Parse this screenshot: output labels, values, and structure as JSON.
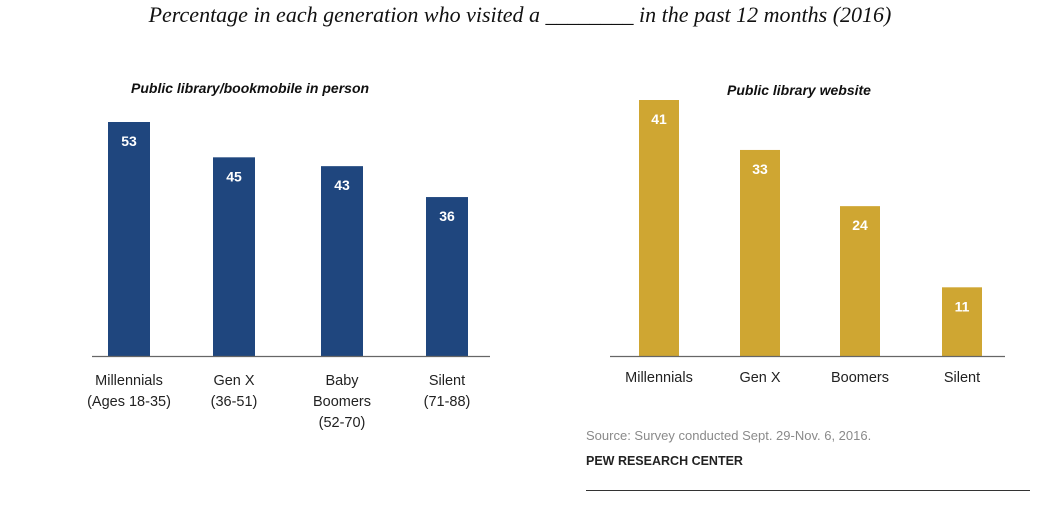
{
  "title": "Percentage in each generation who visited a ________ in the past 12 months (2016)",
  "chart_data": [
    {
      "type": "bar",
      "title": "Public library/bookmobile in person",
      "categories": [
        [
          "Millennials",
          "(Ages 18-35)"
        ],
        [
          "Gen X",
          "(36-51)"
        ],
        [
          "Baby",
          "Boomers",
          "(52-70)"
        ],
        [
          "Silent",
          "(71-88)"
        ]
      ],
      "values": [
        53,
        45,
        43,
        36
      ],
      "color": "#1f467e",
      "data_labels": true,
      "ylim": [
        0,
        53
      ],
      "grid": false
    },
    {
      "type": "bar",
      "title": "Public library website",
      "categories": [
        [
          "Millennials"
        ],
        [
          "Gen X"
        ],
        [
          "Boomers"
        ],
        [
          "Silent"
        ]
      ],
      "values": [
        41,
        33,
        24,
        11
      ],
      "color": "#cfa632",
      "data_labels": true,
      "ylim": [
        0,
        41
      ],
      "grid": false
    }
  ],
  "source": "Source: Survey conducted Sept. 29-Nov. 6, 2016.",
  "organization": "PEW RESEARCH CENTER",
  "colors": {
    "navy": "#1f467e",
    "gold": "#cfa632",
    "axis": "#666666"
  }
}
